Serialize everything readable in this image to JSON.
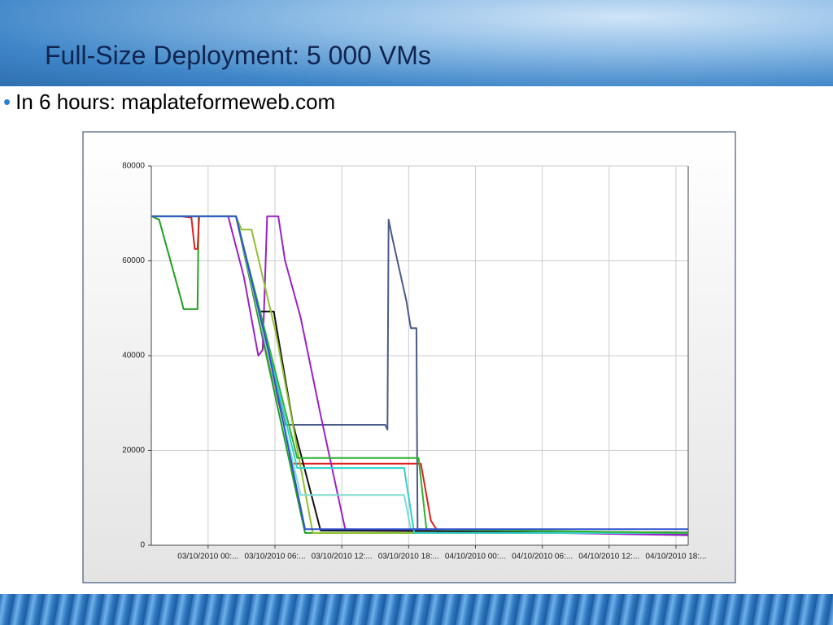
{
  "slide": {
    "title": "Full-Size Deployment: 5 000 VMs",
    "bullet": "In 6 hours: maplateformeweb.com"
  },
  "chart_data": {
    "type": "line",
    "xlim": [
      -5.1,
      43.1
    ],
    "ylim": [
      0,
      80000
    ],
    "xticks": [
      {
        "value": 0,
        "label": "03/10/2010 00:..."
      },
      {
        "value": 6,
        "label": "03/10/2010 06:..."
      },
      {
        "value": 12,
        "label": "03/10/2010 12:..."
      },
      {
        "value": 18,
        "label": "03/10/2010 18:..."
      },
      {
        "value": 24,
        "label": "04/10/2010 00:..."
      },
      {
        "value": 30,
        "label": "04/10/2010 06:..."
      },
      {
        "value": 36,
        "label": "04/10/2010 12:..."
      },
      {
        "value": 42,
        "label": "04/10/2010 18:..."
      }
    ],
    "yticks": [
      0,
      20000,
      40000,
      60000,
      80000
    ],
    "grid": true,
    "series": [
      {
        "color": "#22a022",
        "x": [
          -5.1,
          -4.4,
          -2.5,
          -2.2,
          -0.95,
          -0.85,
          2.5,
          8.7,
          43.1
        ],
        "values": [
          69400,
          68700,
          52500,
          49800,
          49800,
          69400,
          69400,
          2600,
          2600
        ]
      },
      {
        "color": "#e02020",
        "x": [
          -5.1,
          -2.5,
          -1.5,
          -1.2,
          -0.95,
          -0.8,
          2.5,
          7.6,
          19.1,
          20.0,
          20.7,
          43.1
        ],
        "values": [
          69400,
          69400,
          69100,
          62500,
          62500,
          69400,
          69400,
          17200,
          17200,
          5200,
          2600,
          2600
        ]
      },
      {
        "color": "#4a5a8a",
        "x": [
          -5.1,
          2.5,
          6.9,
          15.9,
          16.1,
          16.2,
          16.5,
          17.8,
          18.2,
          18.7,
          18.8,
          43.1
        ],
        "values": [
          69400,
          69400,
          25400,
          25400,
          24400,
          68700,
          65200,
          51500,
          45800,
          45800,
          3400,
          2400
        ]
      },
      {
        "color": "#9a20c8",
        "x": [
          -5.1,
          1.8,
          3.2,
          4.5,
          4.9,
          5.3,
          6.3,
          6.9,
          8.3,
          10.1,
          12.3,
          43.1
        ],
        "values": [
          69400,
          69400,
          56700,
          40000,
          41200,
          69400,
          69400,
          60100,
          48100,
          27500,
          3400,
          2100
        ]
      },
      {
        "color": "#111111",
        "x": [
          -5.1,
          2.5,
          4.5,
          5.9,
          7.6,
          10.1,
          43.1
        ],
        "values": [
          69400,
          69400,
          49300,
          49300,
          25800,
          3100,
          2700
        ]
      },
      {
        "color": "#90c030",
        "x": [
          -5.1,
          2.5,
          3.0,
          3.9,
          6.1,
          9.4,
          43.1
        ],
        "values": [
          69400,
          69400,
          66600,
          66600,
          44600,
          2600,
          2600
        ]
      },
      {
        "color": "#30d0d0",
        "x": [
          -5.1,
          2.5,
          8.0,
          17.6,
          18.5,
          43.1
        ],
        "values": [
          69400,
          69400,
          16300,
          16300,
          2600,
          2600
        ]
      },
      {
        "color": "#7fdcd0",
        "x": [
          -5.1,
          2.5,
          8.3,
          17.6,
          18.2,
          43.1
        ],
        "values": [
          69400,
          69400,
          10600,
          10600,
          3400,
          2600
        ]
      },
      {
        "color": "#30b030",
        "x": [
          -5.1,
          2.5,
          8.0,
          18.9,
          19.6,
          43.1
        ],
        "values": [
          69400,
          69400,
          18400,
          18400,
          3400,
          2600
        ]
      },
      {
        "color": "#3050d0",
        "x": [
          -5.1,
          2.5,
          5.4,
          8.7,
          43.1
        ],
        "values": [
          69400,
          69400,
          41200,
          3400,
          3400
        ]
      }
    ]
  }
}
